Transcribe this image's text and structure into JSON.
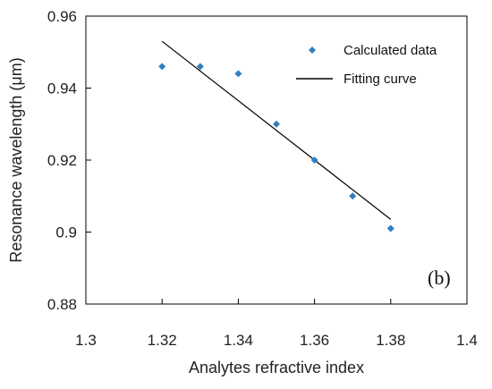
{
  "chart_data": {
    "type": "scatter",
    "xlabel": "Analytes refractive index",
    "ylabel": "Resonance wavelength (μm)",
    "xlim": [
      1.3,
      1.4
    ],
    "ylim": [
      0.88,
      0.96
    ],
    "x_ticks": [
      "1.3",
      "1.32",
      "1.34",
      "1.36",
      "1.38",
      "1.4"
    ],
    "y_ticks": [
      "0.88",
      "0.9",
      "0.92",
      "0.94",
      "0.96"
    ],
    "grid": false,
    "legend_position": "top-right",
    "panel_label": "(b)",
    "series": [
      {
        "name": "Calculated data",
        "marker": "diamond",
        "color": "#2E7FC1",
        "x": [
          1.32,
          1.33,
          1.34,
          1.35,
          1.36,
          1.37,
          1.38
        ],
        "y": [
          0.946,
          0.946,
          0.944,
          0.93,
          0.92,
          0.91,
          0.901
        ]
      },
      {
        "name": "Fitting curve",
        "line": "solid",
        "color": "#000000",
        "x": [
          1.32,
          1.38
        ],
        "y": [
          0.953,
          0.9035
        ]
      }
    ]
  }
}
